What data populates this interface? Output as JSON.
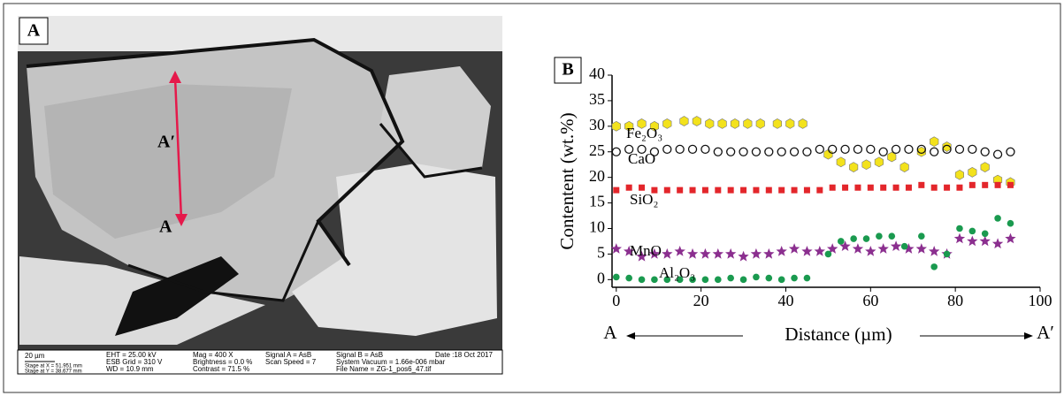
{
  "image_panel": {
    "label": "A",
    "point_top": "A′",
    "point_bottom": "A",
    "scale": "20 µm",
    "stage": [
      "Stage at X = 51.951 mm",
      "Stage at Y = 38.677 mm"
    ],
    "footer": [
      [
        "EHT = 25.00 kV",
        "ESB Grid =   310 V",
        "WD = 10.9 mm"
      ],
      [
        "Mag =   400 X",
        "Brightness =   0.0 %",
        "Contrast = 71.5 %"
      ],
      [
        "Signal A = AsB",
        "Scan Speed = 7"
      ],
      [
        "Signal B = AsB",
        "System Vacuum = 1.66e-006 mbar",
        "File Name = ZG-1_pos6_47.tif"
      ],
      [
        "Date :18 Oct 2017"
      ]
    ]
  },
  "chart_data": {
    "type": "scatter",
    "panel_label": "B",
    "y_label": "Contentent (wt.%)",
    "x_label": "Distance (µm)",
    "start_label": "A",
    "end_label": "A′",
    "xlim": [
      -1,
      100
    ],
    "ylim": [
      -1.5,
      40
    ],
    "xticks": [
      0,
      20,
      40,
      60,
      80,
      100
    ],
    "yticks": [
      0,
      5,
      10,
      15,
      20,
      25,
      30,
      35,
      40
    ],
    "series": [
      {
        "name": "Fe₂O₃",
        "color": "#f3e21c",
        "marker": "hexagon",
        "x": [
          0,
          3,
          6,
          9,
          12,
          16,
          19,
          22,
          25,
          28,
          31,
          34,
          38,
          41,
          44,
          50,
          53,
          56,
          59,
          62,
          65,
          68,
          72,
          75,
          78,
          81,
          84,
          87,
          90,
          93
        ],
        "values": [
          30,
          30,
          30.5,
          30,
          30.5,
          31,
          31,
          30.5,
          30.5,
          30.5,
          30.5,
          30.5,
          30.5,
          30.5,
          30.5,
          24.5,
          23,
          22,
          22.5,
          23,
          24,
          22,
          25,
          27,
          26,
          20.5,
          21,
          22,
          19.5,
          19
        ]
      },
      {
        "name": "CaO",
        "color": "#111111",
        "marker": "ring",
        "x": [
          0,
          3,
          6,
          9,
          12,
          15,
          18,
          21,
          24,
          27,
          30,
          33,
          36,
          39,
          42,
          45,
          48,
          51,
          54,
          57,
          60,
          63,
          66,
          69,
          72,
          75,
          78,
          81,
          84,
          87,
          90,
          93
        ],
        "values": [
          25,
          25.5,
          25.5,
          25,
          25.5,
          25.5,
          25.5,
          25.5,
          25,
          25,
          25,
          25,
          25,
          25,
          25,
          25,
          25.5,
          25.5,
          25.5,
          25.5,
          25.5,
          25,
          25.5,
          25.5,
          25.5,
          25,
          25.5,
          25.5,
          25.5,
          25,
          24.5,
          25
        ]
      },
      {
        "name": "SiO₂",
        "color": "#e3262b",
        "marker": "square",
        "x": [
          0,
          3,
          6,
          9,
          12,
          15,
          18,
          21,
          24,
          27,
          30,
          33,
          36,
          39,
          42,
          45,
          48,
          51,
          54,
          57,
          60,
          63,
          66,
          69,
          72,
          75,
          78,
          81,
          84,
          87,
          90,
          93
        ],
        "values": [
          17.5,
          18,
          18,
          17.5,
          17.5,
          17.5,
          17.5,
          17.5,
          17.5,
          17.5,
          17.5,
          17.5,
          17.5,
          17.5,
          17.5,
          17.5,
          17.5,
          18,
          18,
          18,
          18,
          18,
          18,
          18,
          18.5,
          18,
          18,
          18,
          18.5,
          18.5,
          18.5,
          18.5
        ]
      },
      {
        "name": "MnO",
        "color": "#8b2f8f",
        "marker": "star",
        "x": [
          0,
          3,
          6,
          9,
          12,
          15,
          18,
          21,
          24,
          27,
          30,
          33,
          36,
          39,
          42,
          45,
          48,
          51,
          54,
          57,
          60,
          63,
          66,
          69,
          72,
          75,
          78,
          81,
          84,
          87,
          90,
          93
        ],
        "values": [
          6,
          5.5,
          4.5,
          5,
          5,
          5.5,
          5,
          5,
          5,
          5,
          4.5,
          5,
          5,
          5.5,
          6,
          5.5,
          5.5,
          6,
          6.5,
          6,
          5.5,
          6,
          6.5,
          6,
          6,
          5.5,
          5,
          8,
          7.5,
          7.5,
          7,
          8
        ]
      },
      {
        "name": "Al₂O₃",
        "color": "#1a9a4f",
        "marker": "circle",
        "x": [
          0,
          3,
          6,
          9,
          12,
          15,
          18,
          21,
          24,
          27,
          30,
          33,
          36,
          39,
          42,
          45,
          50,
          53,
          56,
          59,
          62,
          65,
          68,
          72,
          75,
          78,
          81,
          84,
          87,
          90,
          93
        ],
        "values": [
          0.5,
          0.3,
          0,
          0,
          0,
          0,
          0,
          0,
          0,
          0.3,
          0,
          0.5,
          0.3,
          0,
          0.3,
          0.3,
          5,
          7.5,
          8,
          8,
          8.5,
          8.5,
          6.5,
          8.5,
          2.5,
          5,
          10,
          9.5,
          9,
          12,
          11
        ]
      }
    ]
  }
}
